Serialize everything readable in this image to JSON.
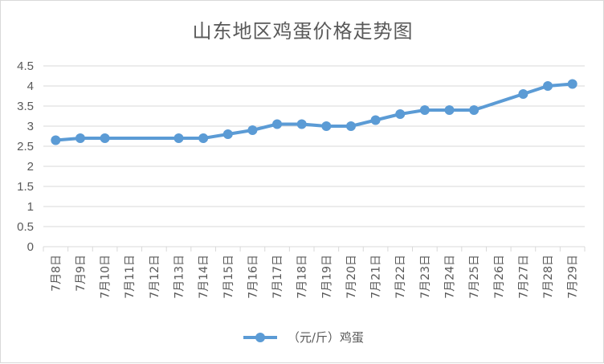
{
  "chart_data": {
    "type": "line",
    "title": "山东地区鸡蛋价格走势图",
    "categories": [
      "7月8日",
      "7月9日",
      "7月10日",
      "7月11日",
      "7月12日",
      "7月13日",
      "7月14日",
      "7月15日",
      "7月16日",
      "7月17日",
      "7月18日",
      "7月19日",
      "7月20日",
      "7月21日",
      "7月22日",
      "7月23日",
      "7月24日",
      "7月25日",
      "7月26日",
      "7月27日",
      "7月28日",
      "7月29日"
    ],
    "series": [
      {
        "name": "（元/斤）鸡蛋",
        "color": "#5b9bd5",
        "values": [
          2.65,
          2.7,
          2.7,
          null,
          null,
          2.7,
          2.7,
          2.8,
          2.9,
          3.05,
          3.05,
          3.0,
          3.0,
          3.15,
          3.3,
          3.4,
          3.4,
          3.4,
          null,
          3.8,
          4.0,
          4.05
        ]
      }
    ],
    "ylim": [
      0,
      4.5
    ],
    "yticks": [
      "0",
      "0.5",
      "1",
      "1.5",
      "2",
      "2.5",
      "3",
      "3.5",
      "4",
      "4.5"
    ],
    "grid": true,
    "legend": "bottom"
  }
}
